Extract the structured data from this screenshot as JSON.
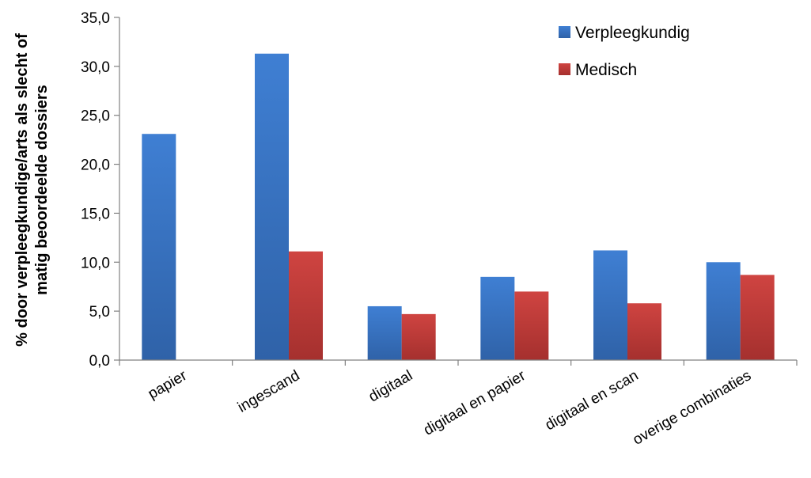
{
  "chart_data": {
    "type": "bar",
    "categories": [
      "papier",
      "ingescand",
      "digitaal",
      "digitaal en papier",
      "digitaal en scan",
      "overige combinaties"
    ],
    "series": [
      {
        "name": "Verpleegkundig",
        "values": [
          23.1,
          31.3,
          5.5,
          8.5,
          11.2,
          10.0
        ],
        "color": "#3A74C4"
      },
      {
        "name": "Medisch",
        "values": [
          null,
          11.1,
          4.7,
          7.0,
          5.8,
          8.7
        ],
        "color": "#C03A38"
      }
    ],
    "ylabel_line1": "% door verpleegkundige/arts als slecht of",
    "ylabel_line2": "matig beoordeelde dossiers",
    "ylim": [
      0,
      35
    ],
    "yticks": [
      "0,0",
      "5,0",
      "10,0",
      "15,0",
      "20,0",
      "25,0",
      "30,0",
      "35,0"
    ],
    "ytick_values": [
      0,
      5,
      10,
      15,
      20,
      25,
      30,
      35
    ],
    "legend_position": "top-right",
    "grid": false
  }
}
